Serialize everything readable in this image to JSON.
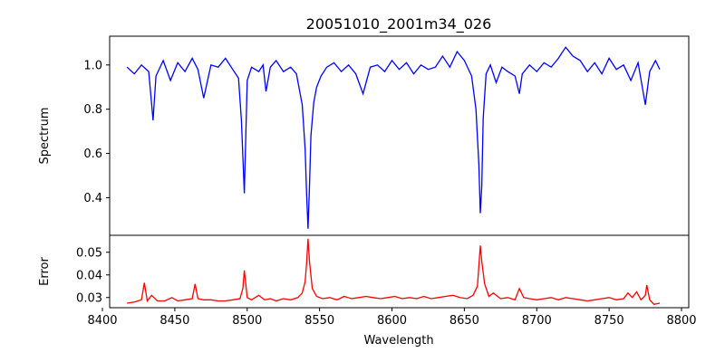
{
  "chart_data": [
    {
      "type": "line",
      "panel": "top",
      "title": "20051010_2001m34_026",
      "xlabel": "",
      "ylabel": "Spectrum",
      "xlim": [
        8405,
        8805
      ],
      "ylim": [
        0.23,
        1.13
      ],
      "yticks": [
        0.4,
        0.6,
        0.8,
        1.0
      ],
      "ytick_labels": [
        "0.4",
        "0.6",
        "0.8",
        "1.0"
      ],
      "grid": false,
      "series": [
        {
          "color": "#0000ff",
          "x": [
            8417,
            8422,
            8427,
            8432,
            8435,
            8437,
            8442,
            8447,
            8452,
            8457,
            8462,
            8466,
            8470,
            8475,
            8480,
            8485,
            8490,
            8494,
            8496,
            8498,
            8500,
            8503,
            8508,
            8511,
            8513,
            8516,
            8520,
            8525,
            8530,
            8534,
            8538,
            8540,
            8541,
            8542,
            8543,
            8544,
            8546,
            8548,
            8551,
            8555,
            8560,
            8565,
            8570,
            8575,
            8580,
            8585,
            8590,
            8595,
            8600,
            8605,
            8610,
            8615,
            8620,
            8625,
            8630,
            8635,
            8640,
            8645,
            8650,
            8655,
            8658,
            8660,
            8661,
            8662,
            8663,
            8665,
            8668,
            8672,
            8676,
            8680,
            8685,
            8688,
            8690,
            8695,
            8700,
            8705,
            8710,
            8715,
            8720,
            8725,
            8730,
            8735,
            8740,
            8745,
            8750,
            8755,
            8760,
            8765,
            8770,
            8775,
            8778,
            8782,
            8785
          ],
          "y": [
            0.99,
            0.96,
            1.0,
            0.97,
            0.75,
            0.95,
            1.02,
            0.93,
            1.01,
            0.97,
            1.03,
            0.98,
            0.85,
            1.0,
            0.99,
            1.03,
            0.98,
            0.94,
            0.75,
            0.42,
            0.93,
            0.99,
            0.97,
            1.0,
            0.88,
            0.99,
            1.02,
            0.97,
            0.99,
            0.96,
            0.82,
            0.62,
            0.42,
            0.26,
            0.45,
            0.68,
            0.83,
            0.9,
            0.95,
            0.99,
            1.01,
            0.97,
            1.0,
            0.96,
            0.87,
            0.99,
            1.0,
            0.97,
            1.02,
            0.98,
            1.01,
            0.96,
            1.0,
            0.98,
            0.99,
            1.04,
            0.99,
            1.06,
            1.02,
            0.95,
            0.8,
            0.55,
            0.33,
            0.45,
            0.76,
            0.96,
            1.0,
            0.92,
            0.99,
            0.97,
            0.95,
            0.87,
            0.96,
            1.0,
            0.97,
            1.01,
            0.99,
            1.03,
            1.08,
            1.04,
            1.02,
            0.97,
            1.01,
            0.96,
            1.03,
            0.98,
            1.0,
            0.93,
            1.01,
            0.82,
            0.97,
            1.02,
            0.98
          ]
        }
      ]
    },
    {
      "type": "line",
      "panel": "bottom",
      "xlabel": "Wavelength",
      "ylabel": "Error",
      "xlim": [
        8405,
        8805
      ],
      "ylim": [
        0.0255,
        0.0575
      ],
      "xticks": [
        8400,
        8450,
        8500,
        8550,
        8600,
        8650,
        8700,
        8750,
        8800
      ],
      "xtick_labels": [
        "8400",
        "8450",
        "8500",
        "8550",
        "8600",
        "8650",
        "8700",
        "8750",
        "8800"
      ],
      "yticks": [
        0.03,
        0.04,
        0.05
      ],
      "ytick_labels": [
        "0.03",
        "0.04",
        "0.05"
      ],
      "grid": false,
      "series": [
        {
          "color": "#ff0000",
          "x": [
            8417,
            8422,
            8427,
            8429,
            8431,
            8434,
            8438,
            8443,
            8448,
            8452,
            8457,
            8462,
            8464,
            8466,
            8470,
            8475,
            8480,
            8485,
            8490,
            8495,
            8497,
            8498,
            8500,
            8503,
            8508,
            8512,
            8516,
            8520,
            8525,
            8530,
            8535,
            8538,
            8540,
            8541,
            8542,
            8543,
            8545,
            8548,
            8552,
            8557,
            8562,
            8567,
            8572,
            8577,
            8582,
            8587,
            8592,
            8597,
            8602,
            8607,
            8612,
            8617,
            8622,
            8627,
            8632,
            8637,
            8642,
            8647,
            8652,
            8656,
            8659,
            8660,
            8661,
            8662,
            8664,
            8667,
            8670,
            8675,
            8680,
            8685,
            8688,
            8691,
            8695,
            8700,
            8705,
            8710,
            8715,
            8720,
            8725,
            8730,
            8735,
            8740,
            8745,
            8750,
            8755,
            8760,
            8763,
            8766,
            8769,
            8772,
            8775,
            8776,
            8778,
            8781,
            8785
          ],
          "y": [
            0.0275,
            0.028,
            0.029,
            0.0365,
            0.0285,
            0.031,
            0.0285,
            0.0285,
            0.03,
            0.0285,
            0.029,
            0.0295,
            0.036,
            0.0295,
            0.029,
            0.029,
            0.0285,
            0.0285,
            0.029,
            0.0295,
            0.034,
            0.042,
            0.03,
            0.029,
            0.031,
            0.029,
            0.0295,
            0.0285,
            0.0295,
            0.029,
            0.03,
            0.032,
            0.037,
            0.045,
            0.056,
            0.046,
            0.034,
            0.0305,
            0.0295,
            0.03,
            0.029,
            0.0305,
            0.0295,
            0.03,
            0.0305,
            0.03,
            0.0295,
            0.03,
            0.0305,
            0.0295,
            0.03,
            0.0295,
            0.0305,
            0.0295,
            0.03,
            0.0305,
            0.031,
            0.03,
            0.0295,
            0.031,
            0.035,
            0.044,
            0.053,
            0.046,
            0.036,
            0.0305,
            0.032,
            0.0295,
            0.03,
            0.029,
            0.034,
            0.03,
            0.0295,
            0.029,
            0.0295,
            0.03,
            0.029,
            0.03,
            0.0295,
            0.029,
            0.0285,
            0.029,
            0.0295,
            0.03,
            0.029,
            0.0295,
            0.032,
            0.03,
            0.0325,
            0.029,
            0.031,
            0.0355,
            0.029,
            0.027,
            0.0275
          ]
        }
      ]
    }
  ]
}
